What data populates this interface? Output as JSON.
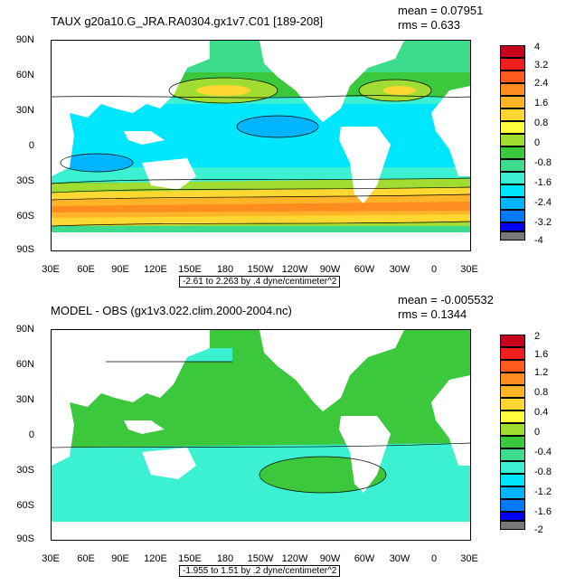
{
  "panels": [
    {
      "title": "TAUX g20a10.G_JRA.RA0304.gx1v7.C01 [189-208]",
      "mean": "mean = 0.07951",
      "rms": "rms = 0.633",
      "range": "-2.61 to 2.263 by .4 dyne/centimeter^2",
      "colorbar_labels": [
        "4",
        "3.2",
        "2.4",
        "1.6",
        "0.8",
        "0",
        "-0.8",
        "-1.6",
        "-2.4",
        "-3.2",
        "-4"
      ],
      "colorbar_colors": [
        "#c8001e",
        "#f01e1e",
        "#ff5a1e",
        "#ff8c1e",
        "#ffb428",
        "#ffd732",
        "#ffff3c",
        "#a0dc32",
        "#3cc83c",
        "#3cdc8c",
        "#3cf0d2",
        "#00e6ff",
        "#00b4ff",
        "#0078ff",
        "#0000ff",
        "#a000dc",
        "#e664e6",
        "#e6e6e6",
        "#787878"
      ]
    },
    {
      "title": "MODEL - OBS (gx1v3.022.clim.2000-2004.nc)",
      "mean": "mean = -0.005532",
      "rms": "rms = 0.1344",
      "range": "-1.955 to 1.51 by .2 dyne/centimeter^2",
      "colorbar_labels": [
        "2",
        "1.6",
        "1.2",
        "0.8",
        "0.4",
        "0",
        "-0.4",
        "-0.8",
        "-1.2",
        "-1.6",
        "-2"
      ],
      "colorbar_colors": [
        "#c8001e",
        "#f01e1e",
        "#ff5a1e",
        "#ff8c1e",
        "#ffb428",
        "#ffd732",
        "#ffff3c",
        "#a0dc32",
        "#3cc83c",
        "#3cdc8c",
        "#3cf0d2",
        "#00e6ff",
        "#00b4ff",
        "#0078ff",
        "#0000ff",
        "#a000dc",
        "#e664e6",
        "#e6e6e6",
        "#787878"
      ]
    }
  ],
  "lat_labels": [
    "90N",
    "60N",
    "30N",
    "0",
    "30S",
    "60S",
    "90S"
  ],
  "lon_labels": [
    "30E",
    "60E",
    "90E",
    "120E",
    "150E",
    "180",
    "150W",
    "120W",
    "90W",
    "60W",
    "30W",
    "0",
    "30E"
  ]
}
